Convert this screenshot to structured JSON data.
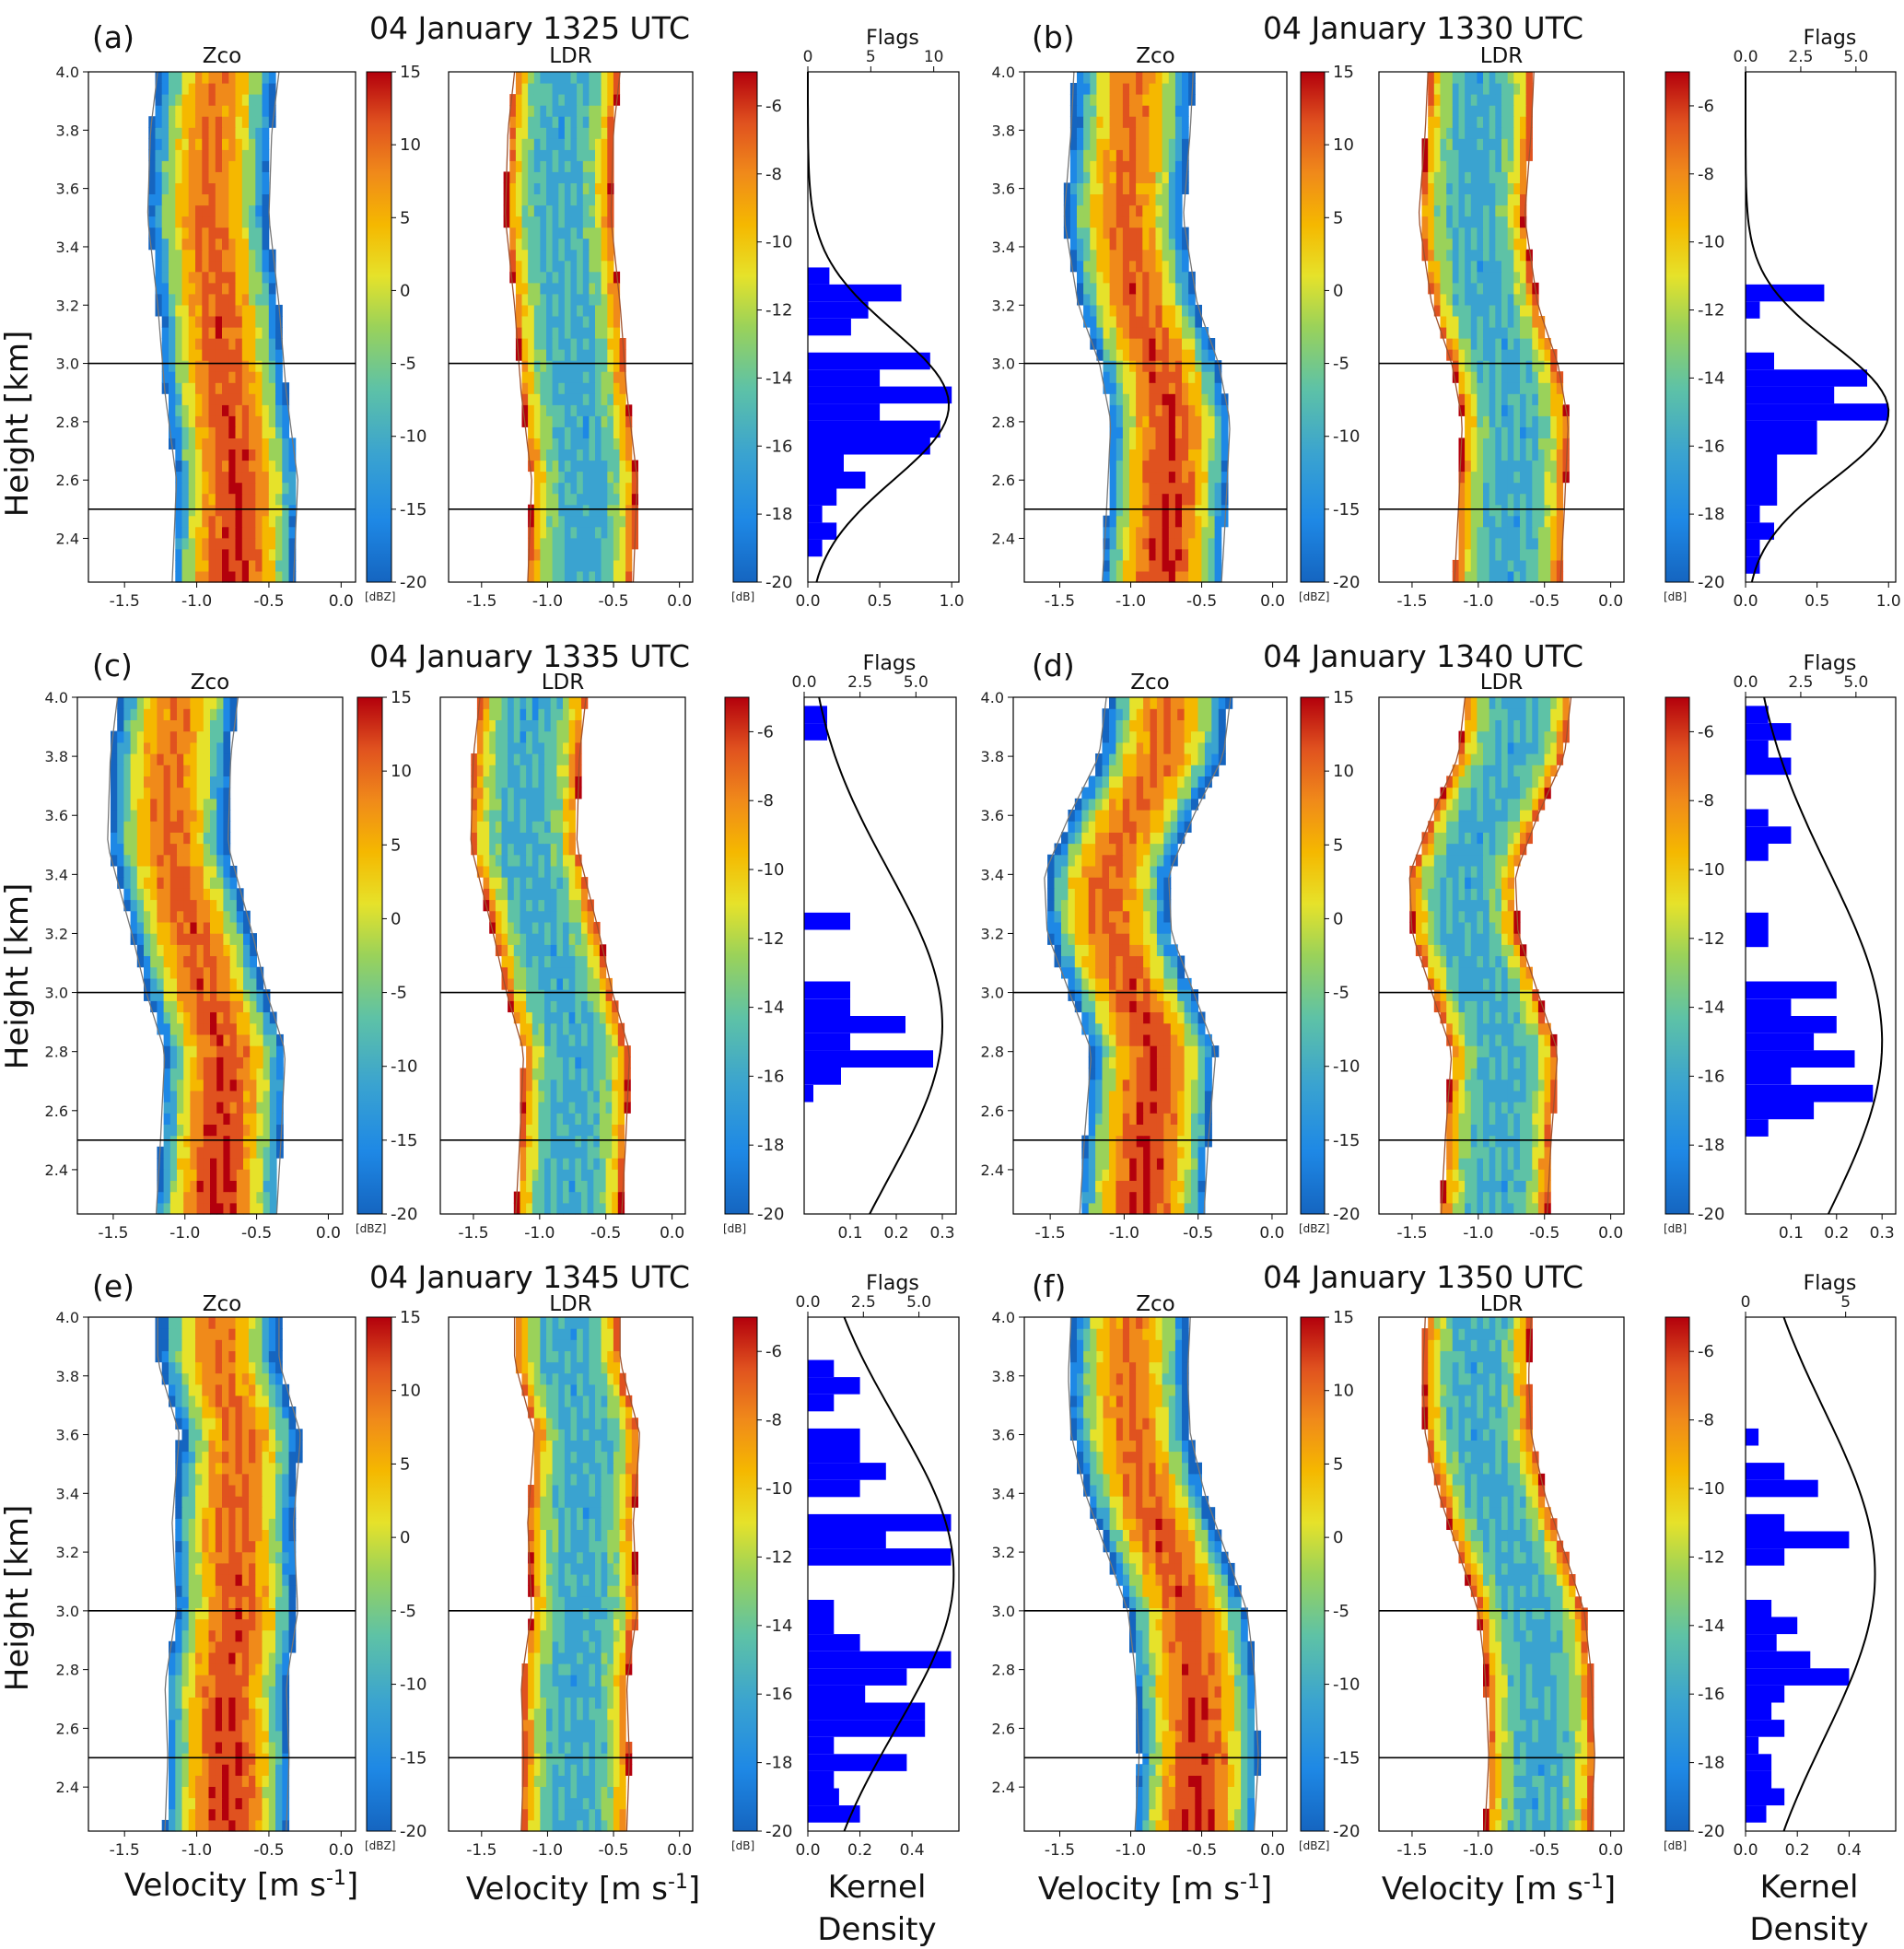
{
  "colors": {
    "zco_ramp": [
      "#1565c0",
      "#1e88e5",
      "#3aa3d0",
      "#5ec2a6",
      "#9ad25a",
      "#e6e22a",
      "#f5b800",
      "#f08a1a",
      "#e0521f",
      "#b3000c"
    ],
    "ldr_ramp": [
      "#1565c0",
      "#1e88e5",
      "#3aa3d0",
      "#5ec2a6",
      "#9ad25a",
      "#e6e22a",
      "#f5b800",
      "#f08a1a",
      "#e0521f",
      "#b3000c"
    ],
    "histogram": "#0000ff",
    "kde_line": "#000000",
    "reference_line": "#000000",
    "edge_contour": "#a0522d"
  },
  "labels": {
    "ylabel": "Height [km]",
    "xlabel": "Velocity [m s-1]",
    "xlabel_main": "Velocity [m s",
    "xlabel_sup": "-1",
    "xlabel_close": "]",
    "zco_title": "Zco",
    "ldr_title": "LDR",
    "flags_title": "Flags",
    "zco_unit": "[dBZ]",
    "ldr_unit": "[dB]",
    "kernel_line1": "Kernel",
    "kernel_line2": "Density"
  },
  "axes": {
    "height_ticks": [
      "2.4",
      "2.6",
      "2.8",
      "3.0",
      "3.2",
      "3.4",
      "3.6",
      "3.8",
      "4.0"
    ],
    "height_range_km": [
      2.25,
      4.0
    ],
    "velocity_ticks": [
      "-1.5",
      "-1.0",
      "-0.5",
      "0.0"
    ],
    "velocity_range": [
      -1.75,
      0.1
    ],
    "zco_cbar_ticks": [
      "15",
      "10",
      "5",
      "0",
      "-5",
      "-10",
      "-15",
      "-20"
    ],
    "zco_cbar_range": [
      -20,
      15
    ],
    "ldr_cbar_ticks": [
      "-6",
      "-8",
      "-10",
      "-12",
      "-14",
      "-16",
      "-18",
      "-20"
    ],
    "ldr_cbar_range": [
      -20,
      -5
    ],
    "ldr_axis_range": [
      -20,
      -5
    ],
    "reference_heights_km": [
      3.0,
      2.5
    ]
  },
  "chart_data": [
    {
      "panel": "(a)",
      "title": "04 January 1325 UTC",
      "type": "heatmap",
      "ridge": [
        [
          2.25,
          -0.75
        ],
        [
          2.6,
          -0.72
        ],
        [
          2.9,
          -0.8
        ],
        [
          3.2,
          -0.85
        ],
        [
          3.5,
          -0.92
        ],
        [
          3.8,
          -0.9
        ],
        [
          4.0,
          -0.85
        ]
      ],
      "flags_ticks": [
        "0",
        "5",
        "10"
      ],
      "flags_range": [
        0,
        12
      ],
      "kde_ticks": [
        "0.0",
        "0.5",
        "1.0"
      ],
      "kde_range": [
        0,
        1.05
      ],
      "histogram": [
        [
          -11.0,
          0.15
        ],
        [
          -11.5,
          0.65
        ],
        [
          -12.0,
          0.42
        ],
        [
          -12.5,
          0.3
        ],
        [
          -13.5,
          0.85
        ],
        [
          -14.0,
          0.5
        ],
        [
          -14.5,
          1.0
        ],
        [
          -15.0,
          0.5
        ],
        [
          -15.5,
          0.92
        ],
        [
          -16.0,
          0.85
        ],
        [
          -16.5,
          0.25
        ],
        [
          -17.0,
          0.4
        ],
        [
          -17.5,
          0.2
        ],
        [
          -18.0,
          0.1
        ],
        [
          -18.5,
          0.2
        ],
        [
          -19.0,
          0.1
        ]
      ],
      "kde_mean": -14.8,
      "kde_sd": 2.2,
      "kde_peak": 0.98
    },
    {
      "panel": "(b)",
      "title": "04 January 1330 UTC",
      "type": "heatmap",
      "ridge": [
        [
          2.25,
          -0.78
        ],
        [
          2.5,
          -0.75
        ],
        [
          2.8,
          -0.72
        ],
        [
          3.0,
          -0.8
        ],
        [
          3.2,
          -0.95
        ],
        [
          3.5,
          -1.05
        ],
        [
          3.8,
          -1.0
        ],
        [
          4.0,
          -0.98
        ]
      ],
      "flags_ticks": [
        "0.0",
        "2.5",
        "5.0"
      ],
      "flags_range": [
        0,
        6.8
      ],
      "kde_ticks": [
        "0.0",
        "0.5",
        "1.0"
      ],
      "kde_range": [
        0,
        1.05
      ],
      "histogram": [
        [
          -11.5,
          0.55
        ],
        [
          -12.0,
          0.1
        ],
        [
          -13.5,
          0.2
        ],
        [
          -14.0,
          0.85
        ],
        [
          -14.5,
          0.62
        ],
        [
          -15.0,
          1.0
        ],
        [
          -15.5,
          0.5
        ],
        [
          -16.0,
          0.5
        ],
        [
          -16.5,
          0.22
        ],
        [
          -17.0,
          0.22
        ],
        [
          -17.5,
          0.22
        ],
        [
          -18.0,
          0.1
        ],
        [
          -18.5,
          0.2
        ],
        [
          -19.0,
          0.1
        ],
        [
          -19.5,
          0.1
        ]
      ],
      "kde_mean": -15.0,
      "kde_sd": 2.0,
      "kde_peak": 1.0
    },
    {
      "panel": "(c)",
      "title": "04 January 1335 UTC",
      "type": "heatmap",
      "ridge": [
        [
          2.25,
          -0.78
        ],
        [
          2.5,
          -0.75
        ],
        [
          2.8,
          -0.72
        ],
        [
          3.0,
          -0.85
        ],
        [
          3.2,
          -0.95
        ],
        [
          3.5,
          -1.12
        ],
        [
          3.8,
          -1.1
        ],
        [
          4.0,
          -1.05
        ]
      ],
      "flags_ticks": [
        "0.0",
        "2.5",
        "5.0"
      ],
      "flags_range": [
        0,
        6.8
      ],
      "kde_ticks": [
        "0.1",
        "0.2",
        "0.3"
      ],
      "kde_range": [
        0,
        0.33
      ],
      "histogram": [
        [
          -5.5,
          0.05
        ],
        [
          -6.0,
          0.05
        ],
        [
          -11.5,
          0.1
        ],
        [
          -13.5,
          0.1
        ],
        [
          -14.0,
          0.1
        ],
        [
          -14.5,
          0.22
        ],
        [
          -15.0,
          0.1
        ],
        [
          -15.5,
          0.28
        ],
        [
          -16.0,
          0.08
        ],
        [
          -16.5,
          0.02
        ]
      ],
      "kde_mean": -14.5,
      "kde_sd": 4.5,
      "kde_peak": 0.3
    },
    {
      "panel": "(d)",
      "title": "04 January 1340 UTC",
      "type": "heatmap",
      "ridge": [
        [
          2.25,
          -0.88
        ],
        [
          2.5,
          -0.85
        ],
        [
          2.8,
          -0.8
        ],
        [
          3.0,
          -0.95
        ],
        [
          3.2,
          -1.1
        ],
        [
          3.4,
          -1.12
        ],
        [
          3.6,
          -0.95
        ],
        [
          3.8,
          -0.75
        ],
        [
          4.0,
          -0.7
        ]
      ],
      "flags_ticks": [
        "0.0",
        "2.5",
        "5.0"
      ],
      "flags_range": [
        0,
        6.8
      ],
      "kde_ticks": [
        "0.1",
        "0.2",
        "0.3"
      ],
      "kde_range": [
        0,
        0.33
      ],
      "histogram": [
        [
          -5.5,
          0.05
        ],
        [
          -6.0,
          0.1
        ],
        [
          -6.5,
          0.05
        ],
        [
          -7.0,
          0.1
        ],
        [
          -8.5,
          0.05
        ],
        [
          -9.0,
          0.1
        ],
        [
          -9.5,
          0.05
        ],
        [
          -11.5,
          0.05
        ],
        [
          -12.0,
          0.05
        ],
        [
          -13.5,
          0.2
        ],
        [
          -14.0,
          0.1
        ],
        [
          -14.5,
          0.2
        ],
        [
          -15.0,
          0.15
        ],
        [
          -15.5,
          0.24
        ],
        [
          -16.0,
          0.1
        ],
        [
          -16.5,
          0.28
        ],
        [
          -17.0,
          0.15
        ],
        [
          -17.5,
          0.05
        ]
      ],
      "kde_mean": -15.0,
      "kde_sd": 5.0,
      "kde_peak": 0.3
    },
    {
      "panel": "(e)",
      "title": "04 January 1345 UTC",
      "type": "heatmap",
      "ridge": [
        [
          2.25,
          -0.8
        ],
        [
          2.5,
          -0.78
        ],
        [
          2.75,
          -0.8
        ],
        [
          3.0,
          -0.72
        ],
        [
          3.3,
          -0.75
        ],
        [
          3.6,
          -0.7
        ],
        [
          3.85,
          -0.85
        ],
        [
          4.0,
          -0.85
        ]
      ],
      "flags_ticks": [
        "0.0",
        "2.5",
        "5.0"
      ],
      "flags_range": [
        0,
        6.8
      ],
      "kde_ticks": [
        "0.0",
        "0.2",
        "0.4"
      ],
      "kde_range": [
        0,
        0.58
      ],
      "histogram": [
        [
          -6.5,
          0.1
        ],
        [
          -7.0,
          0.2
        ],
        [
          -7.5,
          0.1
        ],
        [
          -8.5,
          0.2
        ],
        [
          -9.0,
          0.2
        ],
        [
          -9.5,
          0.3
        ],
        [
          -10.0,
          0.2
        ],
        [
          -11.0,
          0.55
        ],
        [
          -11.5,
          0.3
        ],
        [
          -12.0,
          0.55
        ],
        [
          -13.5,
          0.1
        ],
        [
          -14.0,
          0.1
        ],
        [
          -14.5,
          0.2
        ],
        [
          -15.0,
          0.55
        ],
        [
          -15.5,
          0.38
        ],
        [
          -16.0,
          0.22
        ],
        [
          -16.5,
          0.45
        ],
        [
          -17.0,
          0.45
        ],
        [
          -17.5,
          0.1
        ],
        [
          -18.0,
          0.38
        ],
        [
          -18.5,
          0.1
        ],
        [
          -19.0,
          0.12
        ],
        [
          -19.5,
          0.2
        ]
      ],
      "kde_mean": -12.5,
      "kde_sd": 4.5,
      "kde_peak": 0.56
    },
    {
      "panel": "(f)",
      "title": "04 January 1350 UTC",
      "type": "heatmap",
      "ridge": [
        [
          2.25,
          -0.55
        ],
        [
          2.5,
          -0.52
        ],
        [
          2.8,
          -0.55
        ],
        [
          3.0,
          -0.6
        ],
        [
          3.2,
          -0.75
        ],
        [
          3.4,
          -0.9
        ],
        [
          3.6,
          -1.0
        ],
        [
          3.8,
          -1.02
        ],
        [
          4.0,
          -1.0
        ]
      ],
      "flags_ticks": [
        "0",
        "5"
      ],
      "flags_range": [
        0,
        7.5
      ],
      "kde_ticks": [
        "0.0",
        "0.2",
        "0.4"
      ],
      "kde_range": [
        0,
        0.58
      ],
      "histogram": [
        [
          -8.5,
          0.05
        ],
        [
          -9.5,
          0.15
        ],
        [
          -10.0,
          0.28
        ],
        [
          -11.0,
          0.15
        ],
        [
          -11.5,
          0.4
        ],
        [
          -12.0,
          0.15
        ],
        [
          -13.5,
          0.1
        ],
        [
          -14.0,
          0.2
        ],
        [
          -14.5,
          0.12
        ],
        [
          -15.0,
          0.25
        ],
        [
          -15.5,
          0.4
        ],
        [
          -16.0,
          0.15
        ],
        [
          -16.5,
          0.1
        ],
        [
          -17.0,
          0.15
        ],
        [
          -17.5,
          0.05
        ],
        [
          -18.0,
          0.1
        ],
        [
          -18.5,
          0.1
        ],
        [
          -19.0,
          0.15
        ],
        [
          -19.5,
          0.08
        ]
      ],
      "kde_mean": -12.5,
      "kde_sd": 4.8,
      "kde_peak": 0.5
    }
  ]
}
